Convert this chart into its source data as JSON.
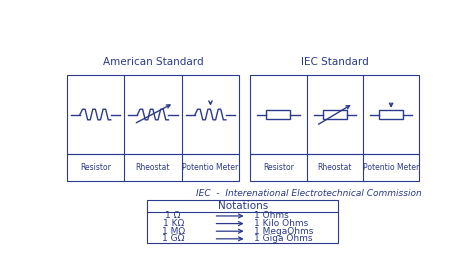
{
  "bg_color": "#ffffff",
  "border_color": "#2b3a8c",
  "text_color": "#2b3a8c",
  "title_american": "American Standard",
  "title_iec": "IEC Standard",
  "iec_note": "IEC  -  Interenational Electrotechnical Commission",
  "notations_title": "Notations",
  "notations": [
    [
      "1 Ω",
      "1 Ohms"
    ],
    [
      "1 KΩ",
      "1 Kilo Ohms"
    ],
    [
      "1 MΩ",
      "1 MegaOhms"
    ],
    [
      "1 GΩ",
      "1 Giga Ohms"
    ]
  ],
  "labels_american": [
    "Resistor",
    "Rheostat",
    "Potentio Meter"
  ],
  "labels_iec": [
    "Resistor",
    "Rheostat",
    "Potentio Meter"
  ],
  "fig_width": 4.74,
  "fig_height": 2.75,
  "dpi": 100
}
